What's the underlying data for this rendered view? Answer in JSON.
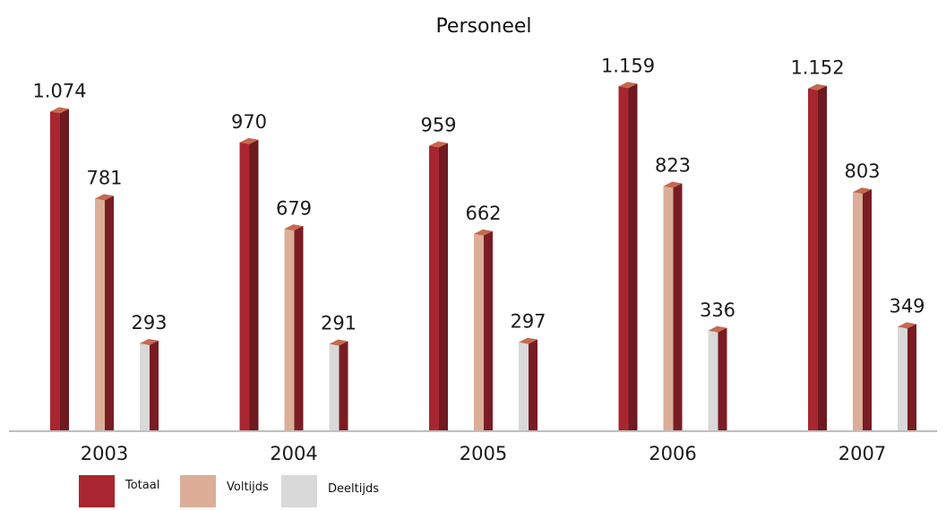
{
  "chart_data": {
    "type": "bar",
    "title": "Personeel",
    "categories": [
      "2003",
      "2004",
      "2005",
      "2006",
      "2007"
    ],
    "series": [
      {
        "name": "Totaal",
        "values": [
          1074,
          970,
          959,
          1159,
          1152
        ],
        "labels": [
          "1.074",
          "970",
          "959",
          "1.159",
          "1.152"
        ],
        "color": "#a8262f",
        "side_color": "#6e1a20",
        "top_color": "#c46a52"
      },
      {
        "name": "Voltijds",
        "values": [
          781,
          679,
          662,
          823,
          803
        ],
        "labels": [
          "781",
          "679",
          "662",
          "823",
          "803"
        ],
        "color": "#dcae98",
        "side_color": "#7a1c24",
        "top_color": "#c46a52"
      },
      {
        "name": "Deeltijds",
        "values": [
          293,
          291,
          297,
          336,
          349
        ],
        "labels": [
          "293",
          "291",
          "297",
          "336",
          "349"
        ],
        "color": "#d9d9d9",
        "side_color": "#7a1c24",
        "top_color": "#c46a52"
      }
    ],
    "ylim": [
      0,
      1200
    ],
    "grid": false,
    "legend": "bottom-left",
    "xlabel": "",
    "ylabel": ""
  }
}
